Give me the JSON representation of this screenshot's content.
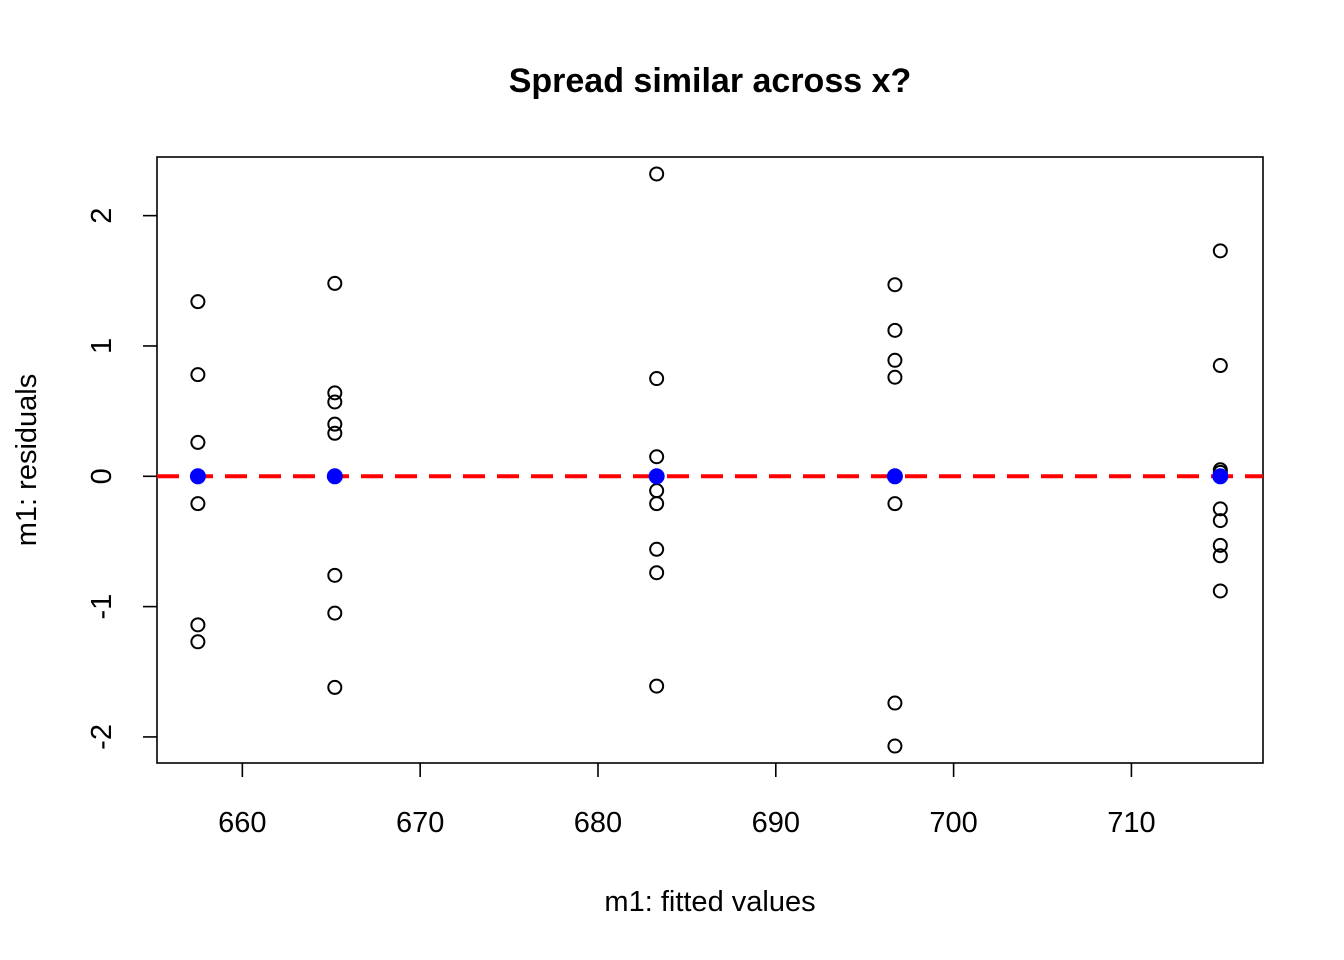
{
  "chart_data": {
    "type": "scatter",
    "title": "Spread similar across x?",
    "xlabel": "m1: fitted values",
    "ylabel": "m1: residuals",
    "xlim": [
      655.2,
      717.4
    ],
    "ylim": [
      -2.2,
      2.45
    ],
    "xticks": [
      660,
      670,
      680,
      690,
      700,
      710
    ],
    "yticks": [
      -2,
      -1,
      0,
      1,
      2
    ],
    "grid": false,
    "series": [
      {
        "marker": "open-circle",
        "color": "#000000",
        "points": [
          [
            657.5,
            1.34
          ],
          [
            657.5,
            0.78
          ],
          [
            657.5,
            0.26
          ],
          [
            657.5,
            -0.21
          ],
          [
            657.5,
            -1.14
          ],
          [
            657.5,
            -1.27
          ],
          [
            665.2,
            1.48
          ],
          [
            665.2,
            0.64
          ],
          [
            665.2,
            0.57
          ],
          [
            665.2,
            0.4
          ],
          [
            665.2,
            0.33
          ],
          [
            665.2,
            -0.76
          ],
          [
            665.2,
            -1.05
          ],
          [
            665.2,
            -1.62
          ],
          [
            683.3,
            2.32
          ],
          [
            683.3,
            0.75
          ],
          [
            683.3,
            0.15
          ],
          [
            683.3,
            -0.11
          ],
          [
            683.3,
            -0.21
          ],
          [
            683.3,
            -0.56
          ],
          [
            683.3,
            -0.74
          ],
          [
            683.3,
            -1.61
          ],
          [
            696.7,
            1.47
          ],
          [
            696.7,
            1.12
          ],
          [
            696.7,
            0.89
          ],
          [
            696.7,
            0.76
          ],
          [
            696.7,
            -0.21
          ],
          [
            696.7,
            -1.74
          ],
          [
            696.7,
            -2.07
          ],
          [
            715.0,
            1.73
          ],
          [
            715.0,
            0.85
          ],
          [
            715.0,
            0.05
          ],
          [
            715.0,
            0.03
          ],
          [
            715.0,
            -0.25
          ],
          [
            715.0,
            -0.34
          ],
          [
            715.0,
            -0.53
          ],
          [
            715.0,
            -0.61
          ],
          [
            715.0,
            -0.88
          ]
        ]
      },
      {
        "marker": "filled-circle",
        "color": "#0000FF",
        "points": [
          [
            657.5,
            0
          ],
          [
            665.2,
            0
          ],
          [
            683.3,
            0
          ],
          [
            696.7,
            0
          ],
          [
            715.0,
            0
          ]
        ]
      }
    ],
    "reference_line": {
      "y": 0,
      "style": "dashed",
      "color": "#FF0000"
    }
  }
}
